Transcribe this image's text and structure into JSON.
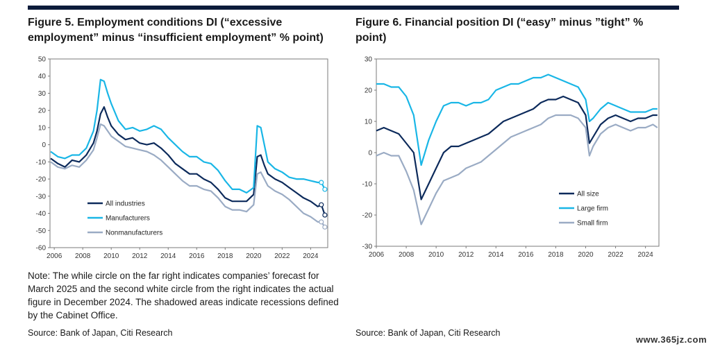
{
  "figure5": {
    "title": "Figure 5. Employment conditions DI (“excessive employment” minus “insufficient employment” % point)",
    "note": "Note: The while circle on the far right indicates companies’ forecast for March 2025 and the second white circle from the right indicates the actual figure in December 2024. The shadowed areas indicate recessions defined by the Cabinet Office.",
    "source": "Source: Bank of Japan, Citi Research"
  },
  "figure6": {
    "title": "Figure 6. Financial position DI (“easy” minus ”tight” % point)",
    "source": "Source: Bank of Japan, Citi Research"
  },
  "watermark": "www.365jz.com",
  "colors": {
    "navy": "#0c2a5b",
    "cyan": "#19b6e6",
    "grey": "#9aabc4",
    "topbar": "#0c1b3a"
  },
  "chart_data": [
    {
      "type": "line",
      "title": "Figure 5. Employment conditions DI (“excessive employment” minus “insufficient employment” % point)",
      "ylim": [
        -60,
        50
      ],
      "yticks": [
        50,
        40,
        30,
        20,
        10,
        0,
        -10,
        -20,
        -30,
        -40,
        -50,
        -60
      ],
      "xlim": [
        2005.7,
        2025.2
      ],
      "xticks": [
        2006,
        2008,
        2010,
        2012,
        2014,
        2016,
        2018,
        2020,
        2022,
        2024
      ],
      "legend": "bottom-left",
      "x": [
        2005.75,
        2006.25,
        2006.75,
        2007.25,
        2007.75,
        2008.25,
        2008.75,
        2009,
        2009.25,
        2009.5,
        2009.75,
        2010,
        2010.5,
        2011,
        2011.5,
        2012,
        2012.5,
        2013,
        2013.5,
        2014,
        2014.5,
        2015,
        2015.5,
        2016,
        2016.5,
        2017,
        2017.5,
        2018,
        2018.5,
        2019,
        2019.5,
        2020,
        2020.25,
        2020.5,
        2020.75,
        2021,
        2021.5,
        2022,
        2022.5,
        2023,
        2023.5,
        2024,
        2024.5,
        2024.75,
        2025
      ],
      "series": [
        {
          "name": "All industries",
          "color": "#0c2a5b",
          "values": [
            -8,
            -11,
            -13,
            -9,
            -10,
            -6,
            1,
            8,
            18,
            22,
            16,
            11,
            6,
            3,
            4,
            1,
            0,
            1,
            -2,
            -6,
            -11,
            -14,
            -17,
            -17,
            -20,
            -22,
            -26,
            -31,
            -33,
            -33,
            -33,
            -29,
            -7,
            -6,
            -12,
            -17,
            -20,
            -22,
            -25,
            -28,
            -31,
            -33,
            -36,
            -35,
            -41
          ]
        },
        {
          "name": "Manufacturers",
          "color": "#19b6e6",
          "values": [
            -4,
            -7,
            -8,
            -6,
            -6,
            -2,
            8,
            20,
            38,
            37,
            30,
            24,
            14,
            9,
            10,
            8,
            9,
            11,
            9,
            4,
            0,
            -4,
            -7,
            -7,
            -10,
            -11,
            -15,
            -21,
            -26,
            -26,
            -28,
            -25,
            11,
            10,
            0,
            -10,
            -14,
            -16,
            -19,
            -20,
            -20,
            -21,
            -22,
            -22,
            -26
          ]
        },
        {
          "name": "Nonmanufacturers",
          "color": "#9aabc4",
          "values": [
            -10,
            -13,
            -14,
            -12,
            -13,
            -9,
            -3,
            4,
            12,
            11,
            8,
            5,
            2,
            -1,
            -2,
            -3,
            -4,
            -6,
            -9,
            -13,
            -17,
            -21,
            -24,
            -24,
            -26,
            -27,
            -31,
            -36,
            -38,
            -38,
            -39,
            -35,
            -17,
            -16,
            -20,
            -24,
            -27,
            -29,
            -32,
            -36,
            -40,
            -42,
            -45,
            -45,
            -48
          ]
        }
      ],
      "open_markers": {
        "x": [
          2024.75,
          2025
        ],
        "series": "all"
      }
    },
    {
      "type": "line",
      "title": "Figure 6. Financial position DI (“easy” minus ”tight” % point)",
      "ylim": [
        -30,
        30
      ],
      "yticks": [
        30,
        20,
        10,
        0,
        -10,
        -20,
        -30
      ],
      "xlim": [
        2006,
        2024.9
      ],
      "xticks": [
        2006,
        2008,
        2010,
        2012,
        2014,
        2016,
        2018,
        2020,
        2022,
        2024
      ],
      "legend": "bottom-right",
      "x": [
        2006,
        2006.5,
        2007,
        2007.5,
        2008,
        2008.5,
        2009,
        2009.5,
        2010,
        2010.5,
        2011,
        2011.5,
        2012,
        2012.5,
        2013,
        2013.5,
        2014,
        2014.5,
        2015,
        2015.5,
        2016,
        2016.5,
        2017,
        2017.5,
        2018,
        2018.5,
        2019,
        2019.5,
        2020,
        2020.25,
        2020.5,
        2021,
        2021.5,
        2022,
        2022.5,
        2023,
        2023.5,
        2024,
        2024.5,
        2024.8
      ],
      "series": [
        {
          "name": "All size",
          "color": "#0c2a5b",
          "values": [
            7,
            8,
            7,
            6,
            3,
            0,
            -15,
            -10,
            -5,
            0,
            2,
            2,
            3,
            4,
            5,
            6,
            8,
            10,
            11,
            12,
            13,
            14,
            16,
            17,
            17,
            18,
            17,
            16,
            12,
            3,
            5,
            9,
            11,
            12,
            11,
            10,
            11,
            11,
            12,
            12
          ]
        },
        {
          "name": "Large firm",
          "color": "#19b6e6",
          "values": [
            22,
            22,
            21,
            21,
            18,
            12,
            -4,
            4,
            10,
            15,
            16,
            16,
            15,
            16,
            16,
            17,
            20,
            21,
            22,
            22,
            23,
            24,
            24,
            25,
            24,
            23,
            22,
            21,
            17,
            10,
            11,
            14,
            16,
            15,
            14,
            13,
            13,
            13,
            14,
            14
          ]
        },
        {
          "name": "Small firm",
          "color": "#9aabc4",
          "values": [
            -1,
            0,
            -1,
            -1,
            -6,
            -12,
            -23,
            -18,
            -13,
            -9,
            -8,
            -7,
            -5,
            -4,
            -3,
            -1,
            1,
            3,
            5,
            6,
            7,
            8,
            9,
            11,
            12,
            12,
            12,
            11,
            8,
            -1,
            2,
            6,
            8,
            9,
            8,
            7,
            8,
            8,
            9,
            8
          ]
        }
      ]
    }
  ]
}
